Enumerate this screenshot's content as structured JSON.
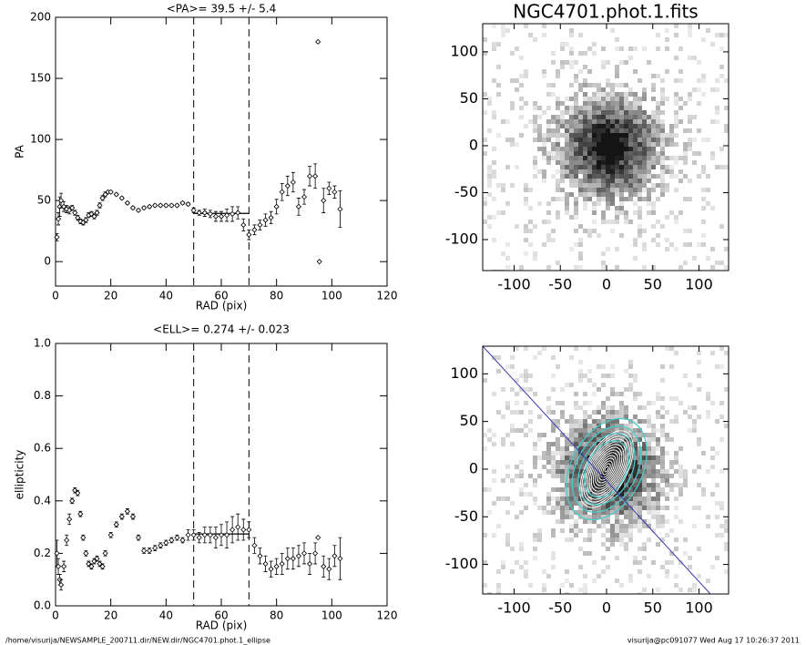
{
  "chart_data": [
    {
      "type": "scatter",
      "title": "<PA>=  39.5 +/-   5.4",
      "xlabel": "RAD (pix)",
      "ylabel": "PA",
      "xlim": [
        0,
        120
      ],
      "ylim": [
        -20,
        200
      ],
      "xticks": [
        0,
        20,
        40,
        60,
        80,
        100,
        120
      ],
      "yticks": [
        0,
        50,
        100,
        150,
        200
      ],
      "vlines": [
        50,
        70
      ],
      "fit": {
        "x": [
          50,
          70
        ],
        "y": 39.5
      },
      "x": [
        0.5,
        1,
        1.5,
        2,
        3,
        4,
        5,
        6,
        7,
        8,
        9,
        10,
        11,
        12,
        13,
        14,
        15,
        16,
        17,
        18,
        19,
        20,
        22,
        24,
        26,
        28,
        30,
        32,
        34,
        36,
        38,
        40,
        42,
        44,
        46,
        48,
        50,
        52,
        54,
        56,
        58,
        60,
        62,
        64,
        66,
        68,
        70,
        72,
        74,
        76,
        78,
        80,
        82,
        84,
        86,
        88,
        90,
        92,
        94,
        95,
        95.5,
        97,
        99,
        101,
        103
      ],
      "values": [
        20,
        35,
        45,
        50,
        45,
        43,
        42,
        44,
        40,
        36,
        33,
        32,
        34,
        38,
        39,
        37,
        40,
        46,
        52,
        55,
        57,
        57,
        55,
        52,
        48,
        44,
        42,
        44,
        45,
        46,
        46,
        46,
        46,
        46,
        48,
        47,
        42,
        40,
        40,
        39,
        37,
        37,
        38,
        39,
        40,
        30,
        22,
        26,
        30,
        34,
        36,
        45,
        57,
        62,
        65,
        45,
        53,
        70,
        70,
        180,
        0,
        50,
        60,
        57,
        43
      ],
      "errors": [
        3,
        5,
        8,
        6,
        4,
        3,
        3,
        2,
        2,
        2,
        2,
        2,
        2,
        2,
        2,
        2,
        2,
        2,
        2,
        2,
        1,
        1,
        1,
        1,
        1,
        1,
        1,
        1,
        1,
        1,
        1,
        1,
        1,
        1,
        1,
        1,
        2,
        2,
        3,
        3,
        4,
        4,
        5,
        6,
        5,
        5,
        4,
        4,
        4,
        5,
        5,
        6,
        7,
        8,
        8,
        7,
        6,
        8,
        10,
        0,
        0,
        10,
        5,
        5,
        15
      ]
    },
    {
      "type": "scatter",
      "title": "<ELL>= 0.274 +/-  0.023",
      "xlabel": "RAD (pix)",
      "ylabel": "ellipticity",
      "xlim": [
        0,
        120
      ],
      "ylim": [
        0,
        1
      ],
      "xticks": [
        0,
        20,
        40,
        60,
        80,
        100,
        120
      ],
      "yticks": [
        {
          "value": 0,
          "label": "0.0"
        },
        0.2,
        0.4,
        0.6,
        0.8,
        {
          "value": 1,
          "label": "1.0"
        }
      ],
      "vlines": [
        50,
        70
      ],
      "fit": {
        "x": [
          50,
          70
        ],
        "y": 0.274
      },
      "x": [
        0.5,
        1,
        1.5,
        2,
        3,
        4,
        5,
        6,
        7,
        8,
        9,
        10,
        11,
        12,
        13,
        14,
        15,
        16,
        17,
        18,
        20,
        22,
        24,
        26,
        28,
        30,
        32,
        34,
        36,
        38,
        40,
        42,
        44,
        46,
        48,
        50,
        52,
        54,
        56,
        58,
        60,
        62,
        64,
        66,
        68,
        70,
        72,
        74,
        76,
        78,
        80,
        82,
        84,
        86,
        88,
        90,
        92,
        94,
        95,
        97,
        99,
        101,
        103
      ],
      "values": [
        0.2,
        0.15,
        0.1,
        0.08,
        0.15,
        0.25,
        0.33,
        0.4,
        0.44,
        0.43,
        0.35,
        0.26,
        0.2,
        0.16,
        0.15,
        0.17,
        0.18,
        0.16,
        0.15,
        0.2,
        0.27,
        0.31,
        0.34,
        0.36,
        0.34,
        0.26,
        0.21,
        0.21,
        0.22,
        0.23,
        0.24,
        0.25,
        0.26,
        0.25,
        0.27,
        0.27,
        0.26,
        0.27,
        0.27,
        0.26,
        0.27,
        0.27,
        0.29,
        0.3,
        0.29,
        0.29,
        0.23,
        0.19,
        0.16,
        0.14,
        0.15,
        0.16,
        0.18,
        0.18,
        0.19,
        0.2,
        0.16,
        0.2,
        0.26,
        0.15,
        0.14,
        0.19,
        0.18
      ],
      "errors": [
        0.05,
        0.03,
        0.02,
        0.02,
        0.02,
        0.02,
        0.02,
        0.01,
        0.01,
        0.01,
        0.01,
        0.01,
        0.01,
        0.01,
        0.01,
        0.01,
        0.01,
        0.01,
        0.01,
        0.01,
        0.01,
        0.01,
        0.01,
        0.01,
        0.01,
        0.01,
        0.01,
        0.01,
        0.01,
        0.01,
        0.01,
        0.01,
        0.01,
        0.01,
        0.02,
        0.02,
        0.02,
        0.03,
        0.03,
        0.04,
        0.04,
        0.05,
        0.05,
        0.05,
        0.04,
        0.03,
        0.03,
        0.03,
        0.03,
        0.03,
        0.03,
        0.04,
        0.04,
        0.04,
        0.04,
        0.04,
        0.04,
        0.04,
        0,
        0.04,
        0.04,
        0.04,
        0.08
      ]
    },
    {
      "type": "image",
      "title": "NGC4701.phot.1.fits",
      "xlim": [
        -134,
        132
      ],
      "ylim": [
        -133,
        130
      ],
      "xticks": [
        -100,
        -50,
        0,
        50,
        100
      ],
      "yticks": [
        -100,
        -50,
        0,
        50,
        100
      ]
    },
    {
      "type": "image",
      "contours": true,
      "xlim": [
        -134,
        132
      ],
      "ylim": [
        -131,
        129
      ],
      "xticks": [
        -100,
        -50,
        0,
        50,
        100
      ],
      "yticks": [
        -100,
        -50,
        0,
        50,
        100
      ]
    }
  ],
  "footer": {
    "path": "/home/visurija/NEWSAMPLE_200711.dir/NEW.dir/NGC4701.phot.1_ellipse",
    "stamp": "visurija@pc091077  Wed Aug 17 10:26:37 2011"
  }
}
